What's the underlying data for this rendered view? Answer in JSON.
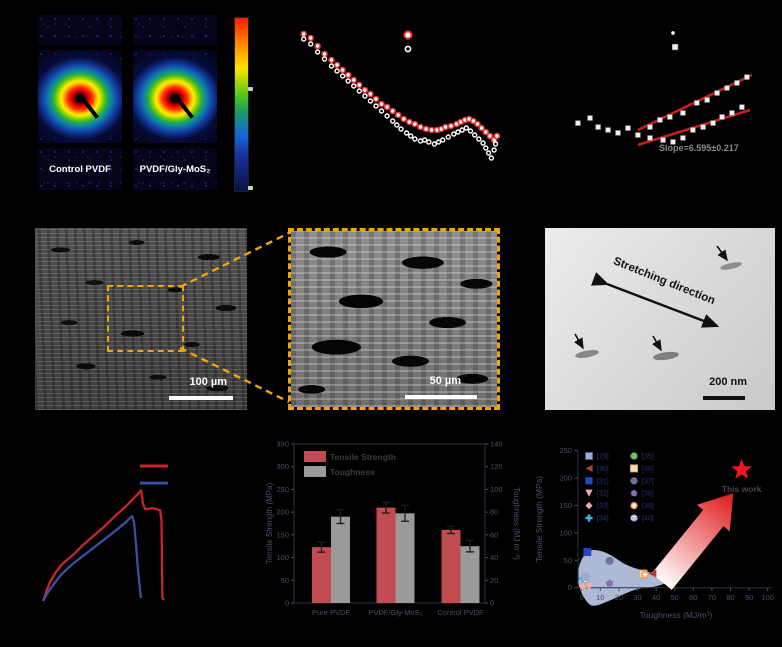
{
  "figure_bg": "#000000",
  "panel_a": {
    "samples": [
      {
        "label": "Control PVDF"
      },
      {
        "label": "PVDF/Gly-MoS₂"
      }
    ],
    "colorbar_colors": [
      "#ff1c00",
      "#ff7a00",
      "#ffe400",
      "#52c41e",
      "#1565d8",
      "#0a1240"
    ]
  },
  "panel_d": {
    "scale_label": "100 µm"
  },
  "panel_e": {
    "scale_label": "50 µm"
  },
  "panel_f": {
    "direction_label": "Stretching direction",
    "scale_label": "200 nm"
  },
  "chart_data": [
    {
      "id": "b",
      "type": "scatter",
      "note": "log-log small-angle scattering intensity profiles; axis text not visible in image",
      "legend_markers": [
        {
          "name": "PVDF/Gly-MoS₂",
          "x": 52.5,
          "y": 13.5,
          "style": "red-ring",
          "size": 3.6
        },
        {
          "name": "Control PVDF",
          "x": 52.5,
          "y": 20.5,
          "style": "white-ring",
          "size": 2.6
        }
      ],
      "series": [
        {
          "name": "PVDF/Gly-MoS₂",
          "marker": "red-ring",
          "size": 2.5,
          "points": [
            [
              15,
              13
            ],
            [
              17.5,
              15
            ],
            [
              20,
              19
            ],
            [
              22.5,
              23
            ],
            [
              25,
              26
            ],
            [
              27,
              28.5
            ],
            [
              29,
              31
            ],
            [
              31,
              33.5
            ],
            [
              33,
              36
            ],
            [
              35,
              38.5
            ],
            [
              37,
              41
            ],
            [
              39,
              43
            ],
            [
              41,
              45.5
            ],
            [
              43,
              48
            ],
            [
              45,
              49.5
            ],
            [
              47,
              51.5
            ],
            [
              49,
              53.5
            ],
            [
              51,
              55.5
            ],
            [
              53,
              57
            ],
            [
              55,
              58
            ],
            [
              57,
              59.5
            ],
            [
              59,
              60.5
            ],
            [
              61,
              61
            ],
            [
              63,
              61
            ],
            [
              64.5,
              60.5
            ],
            [
              66,
              59.5
            ],
            [
              68,
              59
            ],
            [
              70,
              58
            ],
            [
              71.5,
              57
            ],
            [
              73,
              56
            ],
            [
              74.5,
              55.5
            ],
            [
              76,
              56.5
            ],
            [
              77.5,
              58
            ],
            [
              79,
              60
            ],
            [
              80.5,
              62
            ],
            [
              82,
              64
            ],
            [
              83.5,
              66
            ],
            [
              84.5,
              64
            ]
          ]
        },
        {
          "name": "Control PVDF",
          "marker": "white-ring",
          "size": 2.0,
          "points": [
            [
              15,
              15.5
            ],
            [
              17.5,
              18
            ],
            [
              20,
              22
            ],
            [
              22.5,
              25.5
            ],
            [
              25,
              29
            ],
            [
              27,
              31.5
            ],
            [
              29,
              34
            ],
            [
              31,
              36.5
            ],
            [
              33,
              39
            ],
            [
              35,
              41.5
            ],
            [
              37,
              44
            ],
            [
              39,
              46.5
            ],
            [
              41,
              49
            ],
            [
              43,
              51.5
            ],
            [
              45,
              54
            ],
            [
              47,
              56.5
            ],
            [
              48.5,
              58.5
            ],
            [
              50,
              60.5
            ],
            [
              52,
              62.5
            ],
            [
              53.5,
              64
            ],
            [
              55,
              65.5
            ],
            [
              57,
              66.5
            ],
            [
              58.5,
              66
            ],
            [
              60,
              67
            ],
            [
              62,
              68
            ],
            [
              63.5,
              67
            ],
            [
              65,
              66
            ],
            [
              67,
              64.5
            ],
            [
              69,
              63
            ],
            [
              70.5,
              62
            ],
            [
              72,
              61
            ],
            [
              73.5,
              60
            ],
            [
              75,
              61.5
            ],
            [
              76.5,
              63.5
            ],
            [
              78,
              65.5
            ],
            [
              79.5,
              67.5
            ],
            [
              80.5,
              70
            ],
            [
              81.5,
              72.5
            ],
            [
              82.5,
              75
            ],
            [
              83.5,
              71
            ],
            [
              84,
              68
            ]
          ]
        }
      ]
    },
    {
      "id": "c",
      "type": "scatter",
      "note": "white-square data with two linear red fits; axis text not visible in image",
      "annotation": "Slope=6.595±0.217",
      "legend_markers": [
        {
          "x": 54.0,
          "y": 15.7,
          "style": "dot"
        },
        {
          "x": 54.9,
          "y": 22.4,
          "style": "square"
        }
      ],
      "points": [
        [
          13.9,
          58.6
        ],
        [
          19,
          56.2
        ],
        [
          22.4,
          60.5
        ],
        [
          26.6,
          61.9
        ],
        [
          30.8,
          63.3
        ],
        [
          35,
          61
        ],
        [
          39.2,
          64.3
        ],
        [
          44.3,
          60.5
        ],
        [
          48.5,
          57.1
        ],
        [
          52.7,
          55.7
        ],
        [
          58.2,
          53.8
        ],
        [
          64.1,
          49
        ],
        [
          68.4,
          47.6
        ],
        [
          72.6,
          44.3
        ],
        [
          76.8,
          41.9
        ],
        [
          81,
          39.5
        ],
        [
          85.2,
          36.7
        ],
        [
          44.3,
          65.7
        ],
        [
          49.8,
          66.7
        ],
        [
          54,
          67.6
        ],
        [
          58.2,
          65.7
        ],
        [
          62.4,
          61.9
        ],
        [
          66.7,
          60.5
        ],
        [
          70.9,
          58.6
        ],
        [
          74.7,
          55.7
        ],
        [
          78.9,
          53.8
        ],
        [
          83.1,
          51
        ]
      ],
      "fit_lines": [
        {
          "x1": 39.2,
          "y1": 61.9,
          "x2": 87.3,
          "y2": 35.7
        },
        {
          "x1": 39.2,
          "y1": 69.0,
          "x2": 86.5,
          "y2": 52.4
        }
      ],
      "fit_color": "#c81e1e"
    },
    {
      "id": "g",
      "type": "line",
      "note": "stress-strain curves; axis text not visible in image",
      "series": [
        {
          "name": "PVDF/Gly-MoS₂",
          "color": "#c9252b",
          "points": [
            [
              9.8,
              80.8
            ],
            [
              11.1,
              76.4
            ],
            [
              12.8,
              71.4
            ],
            [
              15.3,
              66.5
            ],
            [
              17.9,
              62.6
            ],
            [
              20,
              60.6
            ],
            [
              23,
              57.6
            ],
            [
              26.4,
              53.7
            ],
            [
              29.8,
              50.2
            ],
            [
              33.2,
              46.8
            ],
            [
              37,
              42.9
            ],
            [
              40.9,
              38.4
            ],
            [
              44.3,
              35
            ],
            [
              47.7,
              31
            ],
            [
              50.2,
              28.1
            ],
            [
              51.5,
              26.1
            ],
            [
              51.9,
              29.1
            ],
            [
              52.3,
              32.5
            ],
            [
              53.2,
              35.5
            ],
            [
              54.5,
              35.5
            ],
            [
              56.2,
              35
            ],
            [
              57.9,
              35.5
            ],
            [
              59.6,
              36
            ],
            [
              60.2,
              40.9
            ],
            [
              60.4,
              60.6
            ],
            [
              60.6,
              79.3
            ],
            [
              61.3,
              80.3
            ]
          ]
        },
        {
          "name": "Control PVDF",
          "color": "#3a4f9e",
          "points": [
            [
              9.8,
              80.8
            ],
            [
              11.9,
              76.4
            ],
            [
              14.5,
              72.4
            ],
            [
              17,
              68.5
            ],
            [
              20,
              65
            ],
            [
              23.4,
              61.6
            ],
            [
              26.8,
              58.6
            ],
            [
              30.6,
              55.2
            ],
            [
              34.5,
              51.7
            ],
            [
              38.3,
              48.3
            ],
            [
              42.1,
              44.8
            ],
            [
              45.1,
              41.9
            ],
            [
              46.8,
              39.9
            ],
            [
              47.7,
              38.9
            ],
            [
              48.5,
              41.9
            ],
            [
              49.4,
              53.2
            ],
            [
              50.2,
              65.5
            ],
            [
              51.1,
              75.4
            ],
            [
              51.5,
              79.3
            ]
          ]
        }
      ],
      "legend_swatches": [
        {
          "color": "#c9252b",
          "x1": 51,
          "x2": 63,
          "y": 14.3
        },
        {
          "color": "#3a4f9e",
          "x1": 51,
          "x2": 63,
          "y": 22.7
        }
      ]
    },
    {
      "id": "h",
      "type": "bar",
      "categories": [
        "Pure PVDF",
        "PVDF/Gly-MoS₂",
        "Control PVDF"
      ],
      "series": [
        {
          "name": "Tensile Strength",
          "axis": "left",
          "color": "#c04b52",
          "values": [
            123,
            210,
            161
          ],
          "errors": [
            11,
            12,
            8
          ]
        },
        {
          "name": "Toughness",
          "axis": "right",
          "color": "#9a9a9a",
          "values": [
            76,
            79,
            50
          ],
          "errors": [
            6,
            7,
            5
          ]
        }
      ],
      "left_axis": {
        "label": "Tensile Strength (MPa)",
        "min": 0,
        "max": 350,
        "step": 50
      },
      "right_axis": {
        "label": "Toughness (MJ m⁻³)",
        "min": 0,
        "max": 140,
        "step": 20
      },
      "text_color": "#4b4f66"
    },
    {
      "id": "i",
      "type": "scatter",
      "xlabel": "Toughness (MJ/m³)",
      "ylabel": "Tensile Strength (MPa)",
      "xticks": [
        0,
        10,
        20,
        30,
        40,
        50,
        60,
        70,
        80,
        90,
        100
      ],
      "yticks": [
        0,
        50,
        100,
        150,
        200,
        250
      ],
      "xlim": [
        0,
        100
      ],
      "ylim": [
        0,
        250
      ],
      "text_color": "#4b4f66",
      "legend_text_color": "#2a3570",
      "legend": [
        {
          "ref": "[29]",
          "marker": "square",
          "color": "#9fa8da"
        },
        {
          "ref": "[30]",
          "marker": "triangle-left",
          "color": "#b13a3f"
        },
        {
          "ref": "[31]",
          "marker": "square",
          "color": "#2746c4"
        },
        {
          "ref": "[32]",
          "marker": "triangle-down",
          "color": "#f7a6c3"
        },
        {
          "ref": "[33]",
          "marker": "diamond",
          "color": "#f6a7ae"
        },
        {
          "ref": "[34]",
          "marker": "plus",
          "color": "#37b6ea"
        },
        {
          "ref": "[35]",
          "marker": "circle",
          "color": "#6cbf5a"
        },
        {
          "ref": "[36]",
          "marker": "square-open",
          "color": "#f8d9b6"
        },
        {
          "ref": "[37]",
          "marker": "circle",
          "color": "#6b7596"
        },
        {
          "ref": "[38]",
          "marker": "pentagon",
          "color": "#8a6fae"
        },
        {
          "ref": "[39]",
          "marker": "circle-star",
          "color": "#ef9a4e"
        },
        {
          "ref": "[40]",
          "marker": "circle-striped",
          "color": "#b491d6"
        }
      ],
      "points": [
        {
          "ref": "[31]",
          "x": 3,
          "y": 65,
          "marker": "square",
          "color": "#2746c4"
        },
        {
          "ref": "[37]",
          "x": 15,
          "y": 49,
          "marker": "circle",
          "color": "#6b7596"
        },
        {
          "ref": "[40]",
          "x": 1.4,
          "y": 13,
          "marker": "circle-striped",
          "color": "#b491d6"
        },
        {
          "ref": "[34]",
          "x": 0.5,
          "y": 17,
          "marker": "plus",
          "color": "#37b6ea"
        },
        {
          "ref": "[29]",
          "x": 2,
          "y": 20,
          "marker": "square",
          "color": "#9fa8da"
        },
        {
          "ref": "[35]",
          "x": 3,
          "y": 4,
          "marker": "circle",
          "color": "#6cbf5a"
        },
        {
          "ref": "[33]",
          "x": 0.5,
          "y": 3,
          "marker": "diamond",
          "color": "#f6a7ae"
        },
        {
          "ref": "[32]",
          "x": 4,
          "y": 2,
          "marker": "triangle-down",
          "color": "#f7a6c3"
        },
        {
          "ref": "[38]",
          "x": 15,
          "y": 8,
          "marker": "pentagon",
          "color": "#8a6fae"
        },
        {
          "ref": "[36]",
          "x": 33,
          "y": 25,
          "marker": "square-open",
          "color": "#f8d9b6"
        },
        {
          "ref": "[39]",
          "x": 34,
          "y": 24,
          "marker": "circle-star",
          "color": "#ef9a4e"
        },
        {
          "ref": "[30]",
          "x": 38,
          "y": 26,
          "marker": "triangle-left",
          "color": "#b13a3f"
        }
      ],
      "highlight": {
        "label": "This work",
        "x": 86,
        "y": 215,
        "marker": "star",
        "color": "#ee1621"
      },
      "region": {
        "note": "shaded cluster of literature values",
        "fill": "#b7c3e0"
      }
    }
  ]
}
